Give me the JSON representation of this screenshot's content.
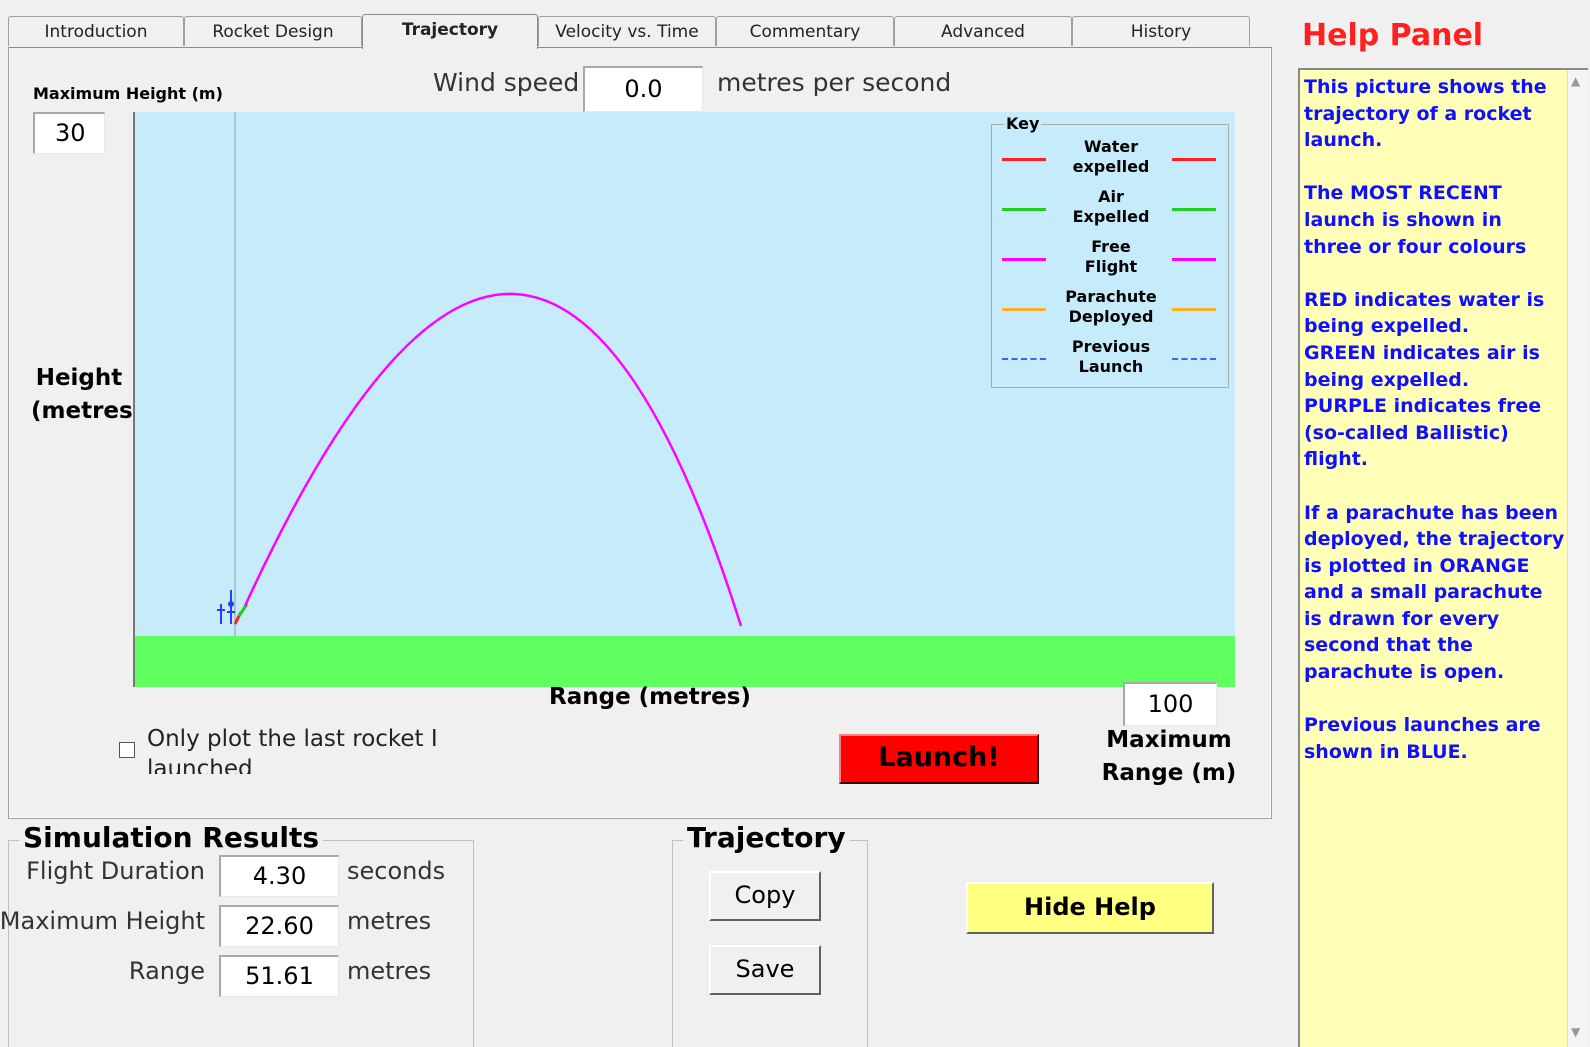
{
  "tabs": [
    {
      "label": "Introduction"
    },
    {
      "label": "Rocket Design"
    },
    {
      "label": "Trajectory"
    },
    {
      "label": "Velocity vs. Time"
    },
    {
      "label": "Commentary"
    },
    {
      "label": "Advanced"
    },
    {
      "label": "History"
    }
  ],
  "active_tab": "Trajectory",
  "max_height": {
    "label": "Maximum Height (m)",
    "value": "30"
  },
  "wind": {
    "label": "Wind speed",
    "value": "0.0",
    "unit": "metres per second"
  },
  "axes": {
    "y_label_1": "Height",
    "y_label_2": "(metres)",
    "x_label": "Range (metres)"
  },
  "max_range": {
    "value": "100",
    "label_1": "Maximum",
    "label_2": "Range (m)"
  },
  "legend": {
    "title": "Key",
    "items": [
      {
        "line1": "Water",
        "line2": "expelled",
        "color": "#ff2020",
        "style": "solid"
      },
      {
        "line1": "Air",
        "line2": "Expelled",
        "color": "#20d020",
        "style": "solid"
      },
      {
        "line1": "Free",
        "line2": "Flight",
        "color": "#ff00ff",
        "style": "solid"
      },
      {
        "line1": "Parachute",
        "line2": "Deployed",
        "color": "#ffb020",
        "style": "solid"
      },
      {
        "line1": "Previous",
        "line2": "Launch",
        "color": "#4060ff",
        "style": "dashed"
      }
    ]
  },
  "only_plot_checkbox": {
    "line1": "Only plot the last rocket I",
    "line2": "launched",
    "checked": false
  },
  "launch_button": "Launch!",
  "results": {
    "title": "Simulation Results",
    "rows": [
      {
        "label": "Flight Duration",
        "value": "4.30",
        "unit": "seconds"
      },
      {
        "label": "Maximum Height",
        "value": "22.60",
        "unit": "metres"
      },
      {
        "label": "Range",
        "value": "51.61",
        "unit": "metres"
      }
    ]
  },
  "trajectory_group": {
    "title": "Trajectory",
    "copy": "Copy",
    "save": "Save"
  },
  "hide_help": "Hide Help",
  "help": {
    "title": "Help Panel",
    "paragraphs": [
      "This picture shows the trajectory of a rocket launch.",
      "The MOST RECENT launch is shown in three or four colours",
      "RED indicates water is being expelled.",
      "GREEN indicates air is being expelled.",
      "PURPLE indicates free (so-called Ballistic) flight.",
      "If a parachute has been deployed, the trajectory is plotted in ORANGE and a small parachute is drawn for every second that the parachute is open.",
      "Previous launches are shown in BLUE."
    ]
  },
  "colors": {
    "sky": "#c6ecfb",
    "ground": "#60ff60",
    "launch": "#ff0000",
    "hide_help": "#ffff80",
    "help_text": "#1010ff",
    "help_title": "#ff2020"
  }
}
